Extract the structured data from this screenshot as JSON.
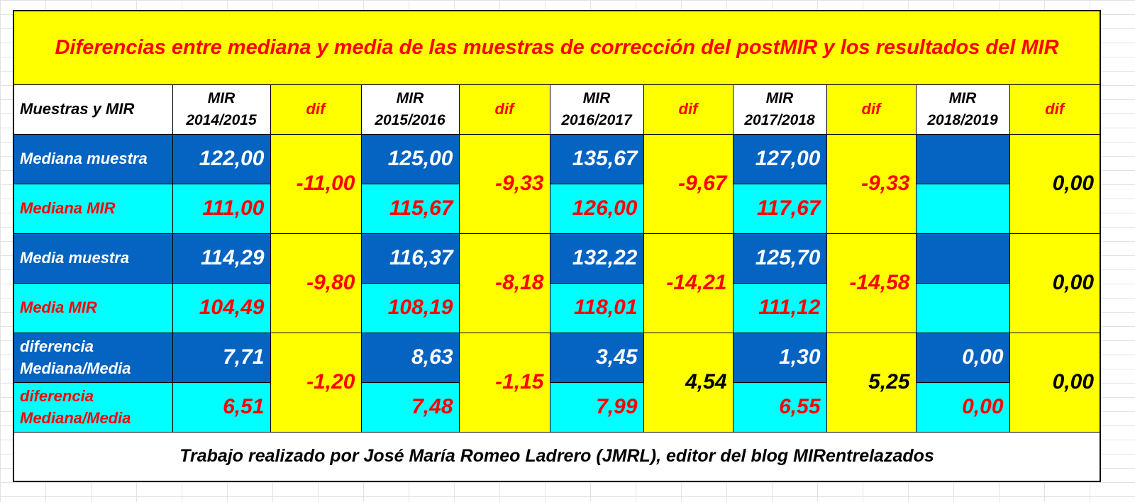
{
  "title": "Diferencias entre mediana y media de las muestras de corrección del postMIR y los resultados del MIR",
  "header": {
    "label": "Muestras y MIR",
    "years": [
      {
        "l1": "MIR",
        "l2": "2014/2015"
      },
      {
        "l1": "MIR",
        "l2": "2015/2016"
      },
      {
        "l1": "MIR",
        "l2": "2016/2017"
      },
      {
        "l1": "MIR",
        "l2": "2017/2018"
      },
      {
        "l1": "MIR",
        "l2": "2018/2019"
      }
    ],
    "dif": "dif"
  },
  "labels": {
    "mediana_muestra": "Mediana muestra",
    "mediana_mir": "Mediana MIR",
    "media_muestra": "Media muestra",
    "media_mir": "Media MIR",
    "diferencia_l1": "diferencia",
    "diferencia_l2": "Mediana/Media"
  },
  "values": {
    "mediana_muestra": [
      "122,00",
      "125,00",
      "135,67",
      "127,00",
      ""
    ],
    "mediana_mir": [
      "111,00",
      "115,67",
      "126,00",
      "117,67",
      ""
    ],
    "mediana_dif": [
      "-11,00",
      "-9,33",
      "-9,67",
      "-9,33",
      "0,00"
    ],
    "media_muestra": [
      "114,29",
      "116,37",
      "132,22",
      "125,70",
      ""
    ],
    "media_mir": [
      "104,49",
      "108,19",
      "118,01",
      "111,12",
      ""
    ],
    "media_dif": [
      "-9,80",
      "-8,18",
      "-14,21",
      "-14,58",
      "0,00"
    ],
    "diferencia_muestra": [
      "7,71",
      "8,63",
      "3,45",
      "1,30",
      "0,00"
    ],
    "diferencia_mir": [
      "6,51",
      "7,48",
      "7,99",
      "6,55",
      "0,00"
    ],
    "diferencia_dif": [
      "-1,20",
      "-1,15",
      "4,54",
      "5,25",
      "0,00"
    ]
  },
  "footer": "Trabajo realizado por José María Romeo Ladrero (JMRL), editor del blog MIRentrelazados",
  "colors": {
    "yellow": "#ffff00",
    "blue": "#0563c1",
    "cyan": "#00ffff",
    "red": "#ff0000"
  }
}
